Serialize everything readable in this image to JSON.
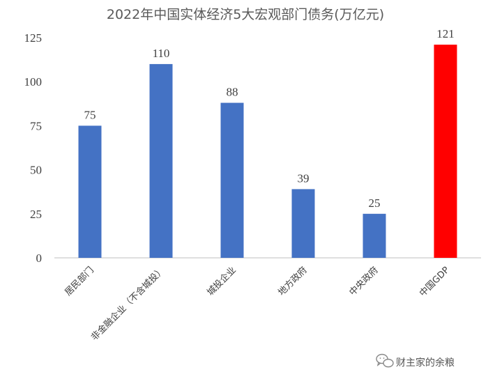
{
  "chart_data": {
    "type": "bar",
    "title": "2022年中国实体经济5大宏观部门债务(万亿元)",
    "categories": [
      "居民部门",
      "非金融企业（不含城投）",
      "城投企业",
      "地方政府",
      "中央政府",
      "中国GDP"
    ],
    "values": [
      75,
      110,
      88,
      39,
      25,
      121
    ],
    "colors": [
      "#4472C4",
      "#4472C4",
      "#4472C4",
      "#4472C4",
      "#4472C4",
      "#FF0000"
    ],
    "ylim": [
      0,
      125
    ],
    "yticks": [
      0,
      25,
      50,
      75,
      100,
      125
    ],
    "grid": false,
    "legend": "none",
    "xlabel": "",
    "ylabel": ""
  },
  "watermark": {
    "text": "财主家的余粮",
    "icon": "wechat-icon"
  }
}
